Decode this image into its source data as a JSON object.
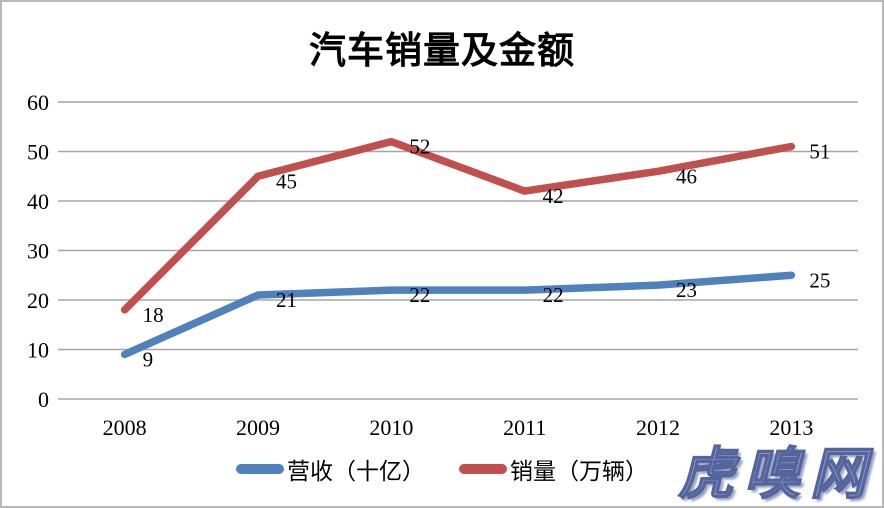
{
  "watermark": {
    "text": "虎嗅网",
    "fill_color": "#8ca3de",
    "outline_color": "#55659c"
  },
  "chart_data": {
    "type": "line",
    "title": "汽车销量及金额",
    "categories": [
      "2008",
      "2009",
      "2010",
      "2011",
      "2012",
      "2013"
    ],
    "series": [
      {
        "name": "营收（十亿）",
        "values": [
          9,
          21,
          22,
          22,
          23,
          25
        ],
        "color": "#4f81bd"
      },
      {
        "name": "销量（万辆）",
        "values": [
          18,
          45,
          52,
          42,
          46,
          51
        ],
        "color": "#c0504d"
      }
    ],
    "ylim": [
      0,
      60
    ],
    "yticks": [
      0,
      10,
      20,
      30,
      40,
      50,
      60
    ],
    "grid": true,
    "gridline_color": "#a6a6a6",
    "legend_position": "bottom",
    "data_labels": true,
    "text_color": "#000000"
  }
}
